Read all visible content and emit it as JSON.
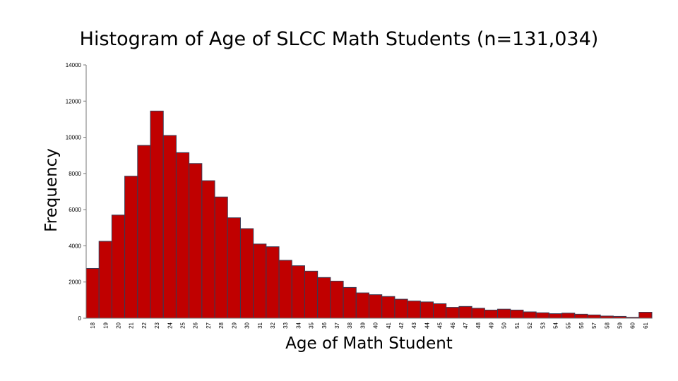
{
  "chart_data": {
    "type": "bar",
    "title": "Histogram of Age of SLCC Math Students (n=131,034)",
    "xlabel": "Age of Math Student",
    "ylabel": "Frequency",
    "ylim": [
      0,
      14000
    ],
    "yticks": [
      0,
      2000,
      4000,
      6000,
      8000,
      10000,
      12000,
      14000
    ],
    "ytick_labels": [
      "0",
      "2000",
      "4000",
      "6000",
      "8000",
      "10000",
      "12000",
      "14000"
    ],
    "grid": false,
    "legend": "none",
    "bar_color": "#c00000",
    "categories": [
      "18",
      "19",
      "20",
      "21",
      "22",
      "23",
      "24",
      "25",
      "26",
      "27",
      "28",
      "29",
      "30",
      "31",
      "32",
      "33",
      "34",
      "35",
      "36",
      "37",
      "38",
      "39",
      "40",
      "41",
      "42",
      "43",
      "44",
      "45",
      "46",
      "47",
      "48",
      "49",
      "50",
      "51",
      "52",
      "53",
      "54",
      "55",
      "56",
      "57",
      "58",
      "59",
      "60",
      "61"
    ],
    "values": [
      2750,
      4250,
      5700,
      7850,
      9550,
      11450,
      10100,
      9150,
      8550,
      7600,
      6700,
      5550,
      4950,
      4100,
      3950,
      3200,
      2900,
      2600,
      2250,
      2050,
      1700,
      1400,
      1300,
      1200,
      1050,
      950,
      900,
      800,
      600,
      650,
      550,
      450,
      500,
      450,
      350,
      300,
      250,
      280,
      220,
      180,
      120,
      100,
      50,
      330
    ]
  }
}
